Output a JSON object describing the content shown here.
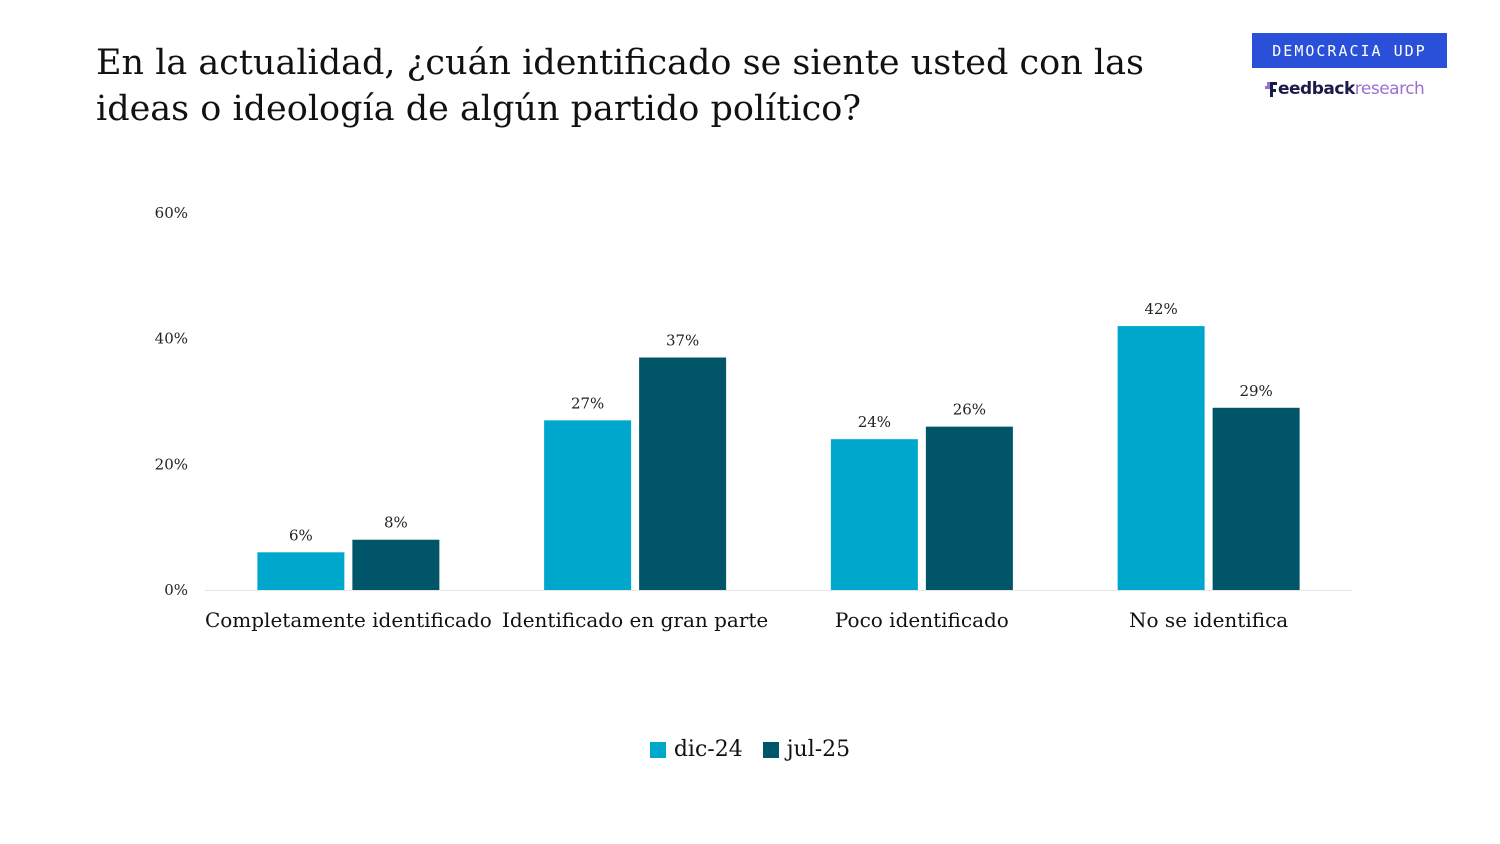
{
  "title_lines": [
    "En la actualidad, ¿cuán identificado se siente usted con las",
    "ideas o ideología de algún partido político?"
  ],
  "brand": {
    "badge_text": "DEMOCRACIA UDP",
    "logo_bold": "eedback",
    "logo_light": "research",
    "badge_color": "#2a50d9"
  },
  "chart_data": {
    "type": "bar",
    "title": "En la actualidad, ¿cuán identificado se siente usted con las ideas o ideología de algún partido político?",
    "categories": [
      "Completamente identificado",
      "Identificado en gran parte",
      "Poco identificado",
      "No se identifica"
    ],
    "series": [
      {
        "name": "dic-24",
        "color": "#00a7cc",
        "values": [
          6,
          27,
          24,
          42
        ],
        "labels": [
          "6%",
          "27%",
          "24%",
          "42%"
        ]
      },
      {
        "name": "jul-25",
        "color": "#005569",
        "values": [
          8,
          37,
          26,
          29
        ],
        "labels": [
          "8%",
          "37%",
          "26%",
          "29%"
        ]
      }
    ],
    "ylim": [
      0,
      60
    ],
    "yticks": [
      0,
      20,
      40,
      60
    ],
    "ytick_labels": [
      "0%",
      "20%",
      "40%",
      "60%"
    ],
    "grid": false,
    "legend_position": "bottom"
  }
}
